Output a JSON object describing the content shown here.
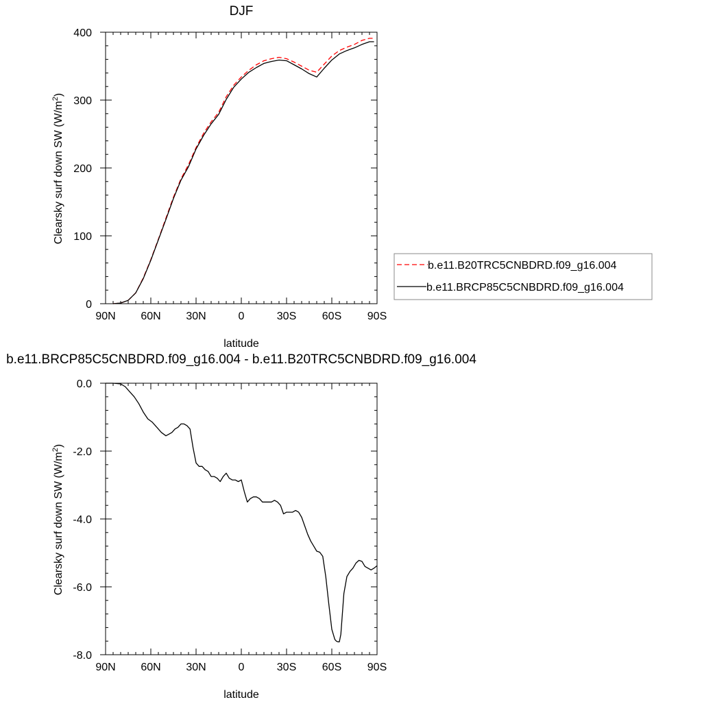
{
  "chart_data": [
    {
      "type": "line",
      "title": "DJF",
      "xlabel": "latitude",
      "ylabel": "Clearsky surf down SW (W/m",
      "ylabel_superscript": "2",
      "ylabel_suffix": ")",
      "xlim": [
        90,
        -90
      ],
      "ylim": [
        0,
        400
      ],
      "xticks": [
        90,
        60,
        30,
        0,
        -30,
        -60,
        -90
      ],
      "xtick_labels": [
        "90N",
        "60N",
        "30N",
        "0",
        "30S",
        "60S",
        "90S"
      ],
      "yticks": [
        0,
        100,
        200,
        300,
        400
      ],
      "ytick_labels": [
        "0",
        "100",
        "200",
        "300",
        "400"
      ],
      "legend_position": "right",
      "series": [
        {
          "name": "b.e11.B20TRC5CNBDRD.f09_g16.004",
          "color": "#ff0000",
          "dash": "dashed",
          "x": [
            85,
            80,
            75,
            70,
            65,
            60,
            55,
            50,
            45,
            40,
            35,
            30,
            25,
            20,
            15,
            10,
            5,
            0,
            -5,
            -10,
            -15,
            -20,
            -25,
            -30,
            -35,
            -40,
            -45,
            -50,
            -55,
            -60,
            -65,
            -70,
            -75,
            -80,
            -85,
            -88
          ],
          "values": [
            0,
            1,
            5,
            16,
            38,
            65,
            95,
            126,
            157,
            184,
            205,
            230,
            251,
            268,
            282,
            305,
            322,
            334,
            344,
            352,
            358,
            361,
            363,
            361,
            356,
            350,
            344,
            341,
            353,
            365,
            373,
            378,
            382,
            388,
            391,
            391
          ]
        },
        {
          "name": "b.e11.BRCP85C5CNBDRD.f09_g16.004",
          "color": "#000000",
          "dash": "solid",
          "x": [
            85,
            80,
            75,
            70,
            65,
            60,
            55,
            50,
            45,
            40,
            35,
            30,
            25,
            20,
            15,
            10,
            5,
            0,
            -5,
            -10,
            -15,
            -20,
            -25,
            -30,
            -35,
            -40,
            -45,
            -50,
            -55,
            -60,
            -65,
            -70,
            -75,
            -80,
            -85,
            -88
          ],
          "values": [
            0,
            1,
            5,
            16,
            37,
            64,
            94,
            124,
            155,
            182,
            202,
            228,
            248,
            265,
            279,
            301,
            319,
            331,
            341,
            348,
            354,
            357,
            359,
            358,
            352,
            346,
            339,
            334,
            347,
            359,
            368,
            373,
            377,
            382,
            386,
            386
          ]
        }
      ]
    },
    {
      "type": "line",
      "title": "b.e11.BRCP85C5CNBDRD.f09_g16.004 - b.e11.B20TRC5CNBDRD.f09_g16.004",
      "xlabel": "latitude",
      "ylabel": "Clearsky surf down SW (W/m",
      "ylabel_superscript": "2",
      "ylabel_suffix": ")",
      "xlim": [
        90,
        -90
      ],
      "ylim": [
        -8,
        0
      ],
      "xticks": [
        90,
        60,
        30,
        0,
        -30,
        -60,
        -90
      ],
      "xtick_labels": [
        "90N",
        "60N",
        "30N",
        "0",
        "30S",
        "60S",
        "90S"
      ],
      "yticks": [
        0,
        -2,
        -4,
        -6,
        -8
      ],
      "ytick_labels": [
        "0.0",
        "-2.0",
        "-4.0",
        "-6.0",
        "-8.0"
      ],
      "series": [
        {
          "color": "#000000",
          "dash": "solid",
          "x": [
            90,
            85,
            80,
            77,
            74,
            71,
            68,
            65,
            62,
            59,
            56,
            53,
            50,
            48,
            46,
            44,
            42,
            40,
            38,
            36,
            34,
            32,
            30,
            28,
            26,
            24,
            22,
            20,
            18,
            16,
            14,
            12,
            10,
            8,
            6,
            4,
            2,
            0,
            -2,
            -4,
            -6,
            -8,
            -10,
            -12,
            -14,
            -16,
            -18,
            -20,
            -22,
            -24,
            -26,
            -28,
            -30,
            -32,
            -34,
            -36,
            -38,
            -40,
            -42,
            -44,
            -46,
            -48,
            -50,
            -52,
            -54,
            -56,
            -58,
            -60,
            -62,
            -63,
            -64,
            -65,
            -66,
            -67,
            -68,
            -70,
            -72,
            -74,
            -76,
            -78,
            -80,
            -82,
            -84,
            -86,
            -88,
            -90
          ],
          "values": [
            0,
            0,
            -0.02,
            -0.1,
            -0.25,
            -0.4,
            -0.6,
            -0.85,
            -1.05,
            -1.15,
            -1.3,
            -1.45,
            -1.55,
            -1.5,
            -1.45,
            -1.35,
            -1.3,
            -1.2,
            -1.2,
            -1.25,
            -1.35,
            -1.9,
            -2.35,
            -2.45,
            -2.45,
            -2.55,
            -2.6,
            -2.75,
            -2.75,
            -2.8,
            -2.9,
            -2.75,
            -2.65,
            -2.8,
            -2.85,
            -2.85,
            -2.9,
            -2.85,
            -3.2,
            -3.5,
            -3.4,
            -3.35,
            -3.35,
            -3.4,
            -3.5,
            -3.5,
            -3.5,
            -3.5,
            -3.45,
            -3.5,
            -3.6,
            -3.85,
            -3.8,
            -3.8,
            -3.8,
            -3.75,
            -3.8,
            -3.95,
            -4.2,
            -4.45,
            -4.65,
            -4.8,
            -4.95,
            -4.98,
            -5.1,
            -5.7,
            -6.5,
            -7.25,
            -7.55,
            -7.6,
            -7.62,
            -7.62,
            -7.4,
            -6.8,
            -6.2,
            -5.7,
            -5.55,
            -5.45,
            -5.3,
            -5.22,
            -5.25,
            -5.4,
            -5.45,
            -5.5,
            -5.45,
            -5.38
          ]
        }
      ]
    }
  ]
}
